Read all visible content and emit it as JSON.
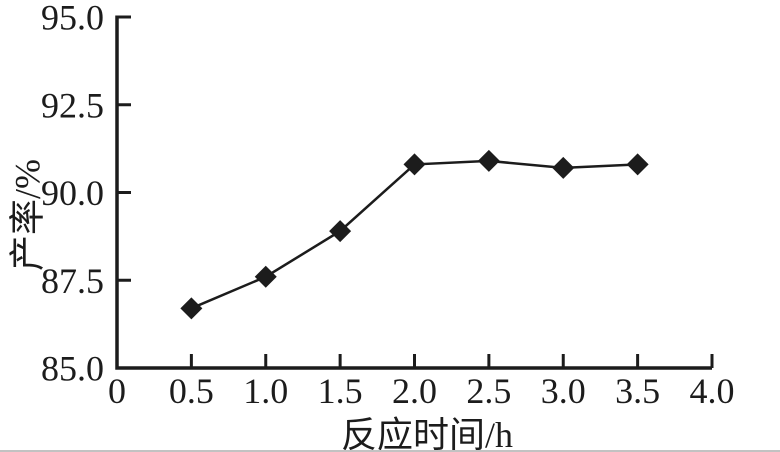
{
  "page": {
    "background": "#ffffff",
    "bottom_edge_line_color": "#c2c2c2"
  },
  "chart_data": {
    "type": "line",
    "title": "",
    "xlabel": "反应时间/h",
    "ylabel": "产率/%",
    "x": [
      0.5,
      1.0,
      1.5,
      2.0,
      2.5,
      3.0,
      3.5
    ],
    "y": [
      86.7,
      87.6,
      88.9,
      90.8,
      90.9,
      90.7,
      90.8
    ],
    "series_name": "产率",
    "xlim": [
      0,
      4.0
    ],
    "ylim": [
      85.0,
      95.0
    ],
    "xtick_values": [
      0,
      0.5,
      1.0,
      1.5,
      2.0,
      2.5,
      3.0,
      3.5,
      4.0
    ],
    "xtick_labels": [
      "0",
      "0.5",
      "1.0",
      "1.5",
      "2.0",
      "2.5",
      "3.0",
      "3.5",
      "4.0"
    ],
    "ytick_values": [
      85.0,
      87.5,
      90.0,
      92.5,
      95.0
    ],
    "ytick_labels": [
      "85.0",
      "87.5",
      "90.0",
      "92.5",
      "95.0"
    ],
    "grid": false,
    "legend": "none",
    "marker": "diamond",
    "line_color": "#1c1c1c",
    "marker_color": "#1c1c1c",
    "axis_color": "#1c1c1c",
    "text_color": "#1c1c1c"
  }
}
